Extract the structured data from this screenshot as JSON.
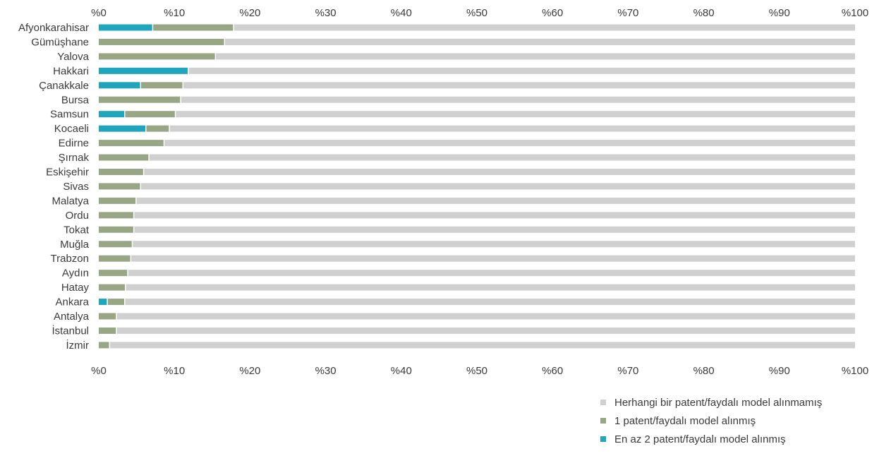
{
  "chart_data": {
    "type": "bar",
    "orientation": "horizontal",
    "stacked": true,
    "title": "",
    "xlabel": "",
    "ylabel": "",
    "xlim": [
      0,
      100
    ],
    "grid": false,
    "legend_position": "bottom-right",
    "x_ticks": [
      0,
      10,
      20,
      30,
      40,
      50,
      60,
      70,
      80,
      90,
      100
    ],
    "x_tick_labels": [
      "%0",
      "%10",
      "%20",
      "%30",
      "%40",
      "%50",
      "%60",
      "%70",
      "%80",
      "%90",
      "%100"
    ],
    "categories": [
      "Afyonkarahisar",
      "Gümüşhane",
      "Yalova",
      "Hakkari",
      "Çanakkale",
      "Bursa",
      "Samsun",
      "Kocaeli",
      "Edirne",
      "Şırnak",
      "Eskişehir",
      "Sivas",
      "Malatya",
      "Ordu",
      "Tokat",
      "Muğla",
      "Trabzon",
      "Aydın",
      "Hatay",
      "Ankara",
      "Antalya",
      "İstanbul",
      "İzmir"
    ],
    "series": [
      {
        "name": "En az 2 patent/faydalı model alınmış",
        "color": "#1FA6BC",
        "values": [
          7.2,
          0,
          0,
          11.9,
          5.6,
          0,
          3.5,
          6.3,
          0,
          0,
          0,
          0,
          0,
          0,
          0,
          0,
          0,
          0,
          0,
          1.2,
          0,
          0,
          0
        ]
      },
      {
        "name": "1 patent/faydalı model alınmış",
        "color": "#98A685",
        "values": [
          10.7,
          16.7,
          15.5,
          0,
          5.6,
          10.9,
          6.7,
          3.1,
          8.7,
          6.7,
          6.0,
          5.6,
          5.0,
          4.7,
          4.7,
          4.5,
          4.3,
          3.9,
          3.6,
          2.3,
          2.4,
          2.4,
          1.5
        ]
      },
      {
        "name": "Herhangi bir patent/faydalı model alınmamış",
        "color": "#D0D0D0",
        "values": [
          82.1,
          83.3,
          84.5,
          88.1,
          88.8,
          89.1,
          89.8,
          90.6,
          91.3,
          93.3,
          94.0,
          94.4,
          95.0,
          95.3,
          95.3,
          95.5,
          95.7,
          96.1,
          96.4,
          96.5,
          97.6,
          97.6,
          98.5
        ]
      }
    ],
    "legend_order": [
      2,
      1,
      0
    ]
  }
}
